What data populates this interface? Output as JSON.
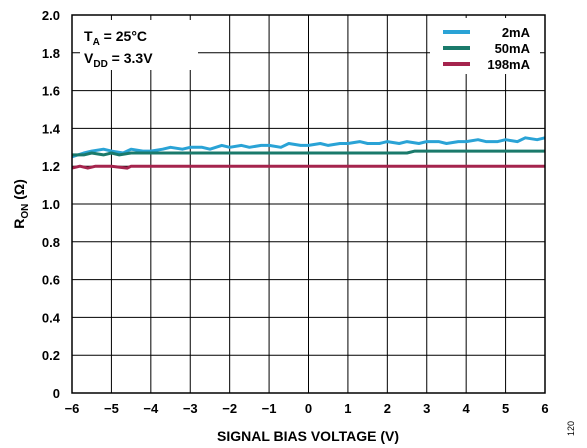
{
  "chart_data": {
    "type": "line",
    "title": "",
    "xlabel": "SIGNAL BIAS VOLTAGE (V)",
    "ylabel": {
      "main": "R",
      "sub": "ON",
      "unit": " (Ω)"
    },
    "xlim": [
      -6,
      6
    ],
    "ylim": [
      0,
      2.0
    ],
    "xticks": [
      -6,
      -5,
      -4,
      -3,
      -2,
      -1,
      0,
      1,
      2,
      3,
      4,
      5,
      6
    ],
    "xtick_labels": [
      "−6",
      "−5",
      "−4",
      "−3",
      "−2",
      "−1",
      "0",
      "1",
      "2",
      "3",
      "4",
      "5",
      "6"
    ],
    "yticks": [
      0,
      0.2,
      0.4,
      0.6,
      0.8,
      1.0,
      1.2,
      1.4,
      1.6,
      1.8,
      2.0
    ],
    "ytick_labels": [
      "0",
      "0.2",
      "0.4",
      "0.6",
      "0.8",
      "1.0",
      "1.2",
      "1.4",
      "1.6",
      "1.8",
      "2.0"
    ],
    "grid": true,
    "legend_position": "top-right",
    "annotations": [
      {
        "main": "T",
        "sub": "A",
        "rest": " = 25°C"
      },
      {
        "main": "V",
        "sub": "DD",
        "rest": " = 3.3V"
      }
    ],
    "series": [
      {
        "name": "2mA",
        "color": "#2aa3d6",
        "x": [
          -6,
          -5.7,
          -5.5,
          -5.2,
          -5,
          -4.7,
          -4.5,
          -4.2,
          -4,
          -3.7,
          -3.5,
          -3.2,
          -3,
          -2.7,
          -2.5,
          -2.2,
          -2,
          -1.7,
          -1.5,
          -1.2,
          -1,
          -0.7,
          -0.5,
          -0.2,
          0,
          0.3,
          0.5,
          0.8,
          1,
          1.3,
          1.5,
          1.8,
          2,
          2.3,
          2.5,
          2.8,
          3,
          3.3,
          3.5,
          3.8,
          4,
          4.3,
          4.5,
          4.8,
          5,
          5.3,
          5.5,
          5.8,
          6
        ],
        "y": [
          1.25,
          1.27,
          1.28,
          1.29,
          1.28,
          1.27,
          1.29,
          1.28,
          1.28,
          1.29,
          1.3,
          1.29,
          1.3,
          1.3,
          1.29,
          1.31,
          1.3,
          1.31,
          1.3,
          1.31,
          1.31,
          1.3,
          1.32,
          1.31,
          1.31,
          1.32,
          1.31,
          1.32,
          1.32,
          1.33,
          1.32,
          1.32,
          1.33,
          1.32,
          1.33,
          1.32,
          1.33,
          1.33,
          1.32,
          1.33,
          1.33,
          1.34,
          1.33,
          1.33,
          1.34,
          1.33,
          1.35,
          1.34,
          1.35
        ]
      },
      {
        "name": "50mA",
        "color": "#1a7a6b",
        "x": [
          -6,
          -5.7,
          -5.5,
          -5.2,
          -5,
          -4.8,
          -4.5,
          -4,
          -3.5,
          -3,
          -2,
          -1,
          0,
          1,
          2,
          2.5,
          2.7,
          3,
          4,
          5,
          6
        ],
        "y": [
          1.26,
          1.26,
          1.27,
          1.26,
          1.27,
          1.26,
          1.27,
          1.27,
          1.27,
          1.27,
          1.27,
          1.27,
          1.27,
          1.27,
          1.27,
          1.27,
          1.28,
          1.28,
          1.28,
          1.28,
          1.28
        ]
      },
      {
        "name": "198mA",
        "color": "#a5244d",
        "x": [
          -6,
          -5.8,
          -5.6,
          -5.4,
          -5,
          -4.6,
          -4.5,
          -4,
          -3,
          -2,
          -1,
          0,
          1,
          2,
          3,
          4,
          5,
          6
        ],
        "y": [
          1.19,
          1.2,
          1.19,
          1.2,
          1.2,
          1.19,
          1.2,
          1.2,
          1.2,
          1.2,
          1.2,
          1.2,
          1.2,
          1.2,
          1.2,
          1.2,
          1.2,
          1.2
        ]
      }
    ],
    "figure_id": "120"
  }
}
